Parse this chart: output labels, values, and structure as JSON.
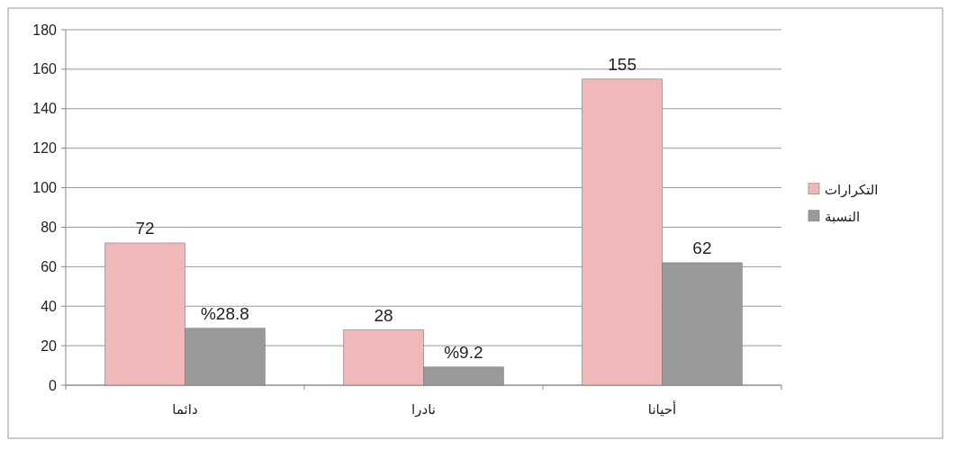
{
  "chart_data": {
    "type": "bar",
    "categories": [
      "دائما",
      "نادرا",
      "أحيانا"
    ],
    "series": [
      {
        "name": "التكرارات",
        "color": "#f0b8b8",
        "values": [
          72,
          28,
          155
        ],
        "value_labels": [
          "72",
          "28",
          "155"
        ]
      },
      {
        "name": "النسبة",
        "color": "#9a9a9a",
        "values": [
          28.8,
          9.2,
          62
        ],
        "value_labels": [
          "%28.8",
          "%9.2",
          "62"
        ]
      }
    ],
    "ylim": [
      0,
      180
    ],
    "yticks": [
      0,
      20,
      40,
      60,
      80,
      100,
      120,
      140,
      160,
      180
    ],
    "grid": "y",
    "legend": "right"
  }
}
